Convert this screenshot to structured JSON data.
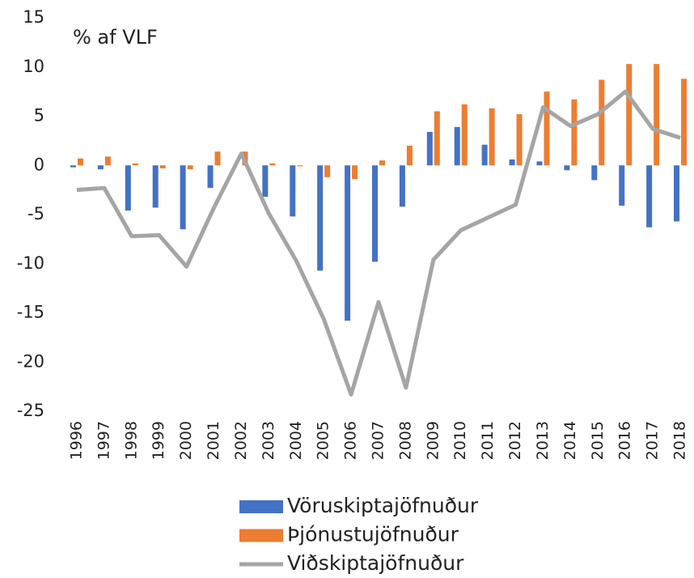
{
  "chart_data": {
    "type": "bar",
    "annotation": "% af VLF",
    "categories": [
      "1996",
      "1997",
      "1998",
      "1999",
      "2000",
      "2001",
      "2002",
      "2003",
      "2004",
      "2005",
      "2006",
      "2007",
      "2008",
      "2009",
      "2010",
      "2011",
      "2012",
      "2013",
      "2014",
      "2015",
      "2016",
      "2017",
      "2018"
    ],
    "series": [
      {
        "name": "Vöruskiptajöfnuður",
        "type": "bar",
        "color": "#4472c4",
        "values": [
          -0.2,
          -0.4,
          -4.6,
          -4.3,
          -6.5,
          -2.3,
          0,
          -3.2,
          -5.2,
          -10.7,
          -15.8,
          -9.8,
          -4.2,
          3.4,
          3.9,
          2.1,
          0.6,
          0.4,
          -0.5,
          -1.5,
          -4.1,
          -6.3,
          -5.7
        ]
      },
      {
        "name": "Þjónustujöfnuður",
        "type": "bar",
        "color": "#ed7d31",
        "values": [
          0.7,
          0.9,
          0.2,
          -0.3,
          -0.4,
          1.4,
          1.4,
          0.2,
          -0.1,
          -1.2,
          -1.4,
          0.5,
          2.0,
          5.5,
          6.2,
          5.8,
          5.2,
          7.5,
          6.7,
          8.7,
          10.3,
          10.3,
          8.8
        ]
      },
      {
        "name": "Viðskiptajöfnuður",
        "type": "line",
        "color": "#a5a5a5",
        "values": [
          -2.5,
          -2.3,
          -7.2,
          -7.1,
          -10.3,
          -4.3,
          1.2,
          -4.9,
          -9.7,
          -15.6,
          -23.3,
          -13.9,
          -22.6,
          -9.6,
          -6.6,
          -5.3,
          -4.0,
          5.9,
          4.0,
          5.2,
          7.5,
          3.7,
          2.8
        ]
      }
    ],
    "ylim": [
      -25,
      15
    ],
    "yticks": [
      -25,
      -20,
      -15,
      -10,
      -5,
      0,
      5,
      10,
      15
    ],
    "grid": false,
    "legend": "bottom"
  }
}
